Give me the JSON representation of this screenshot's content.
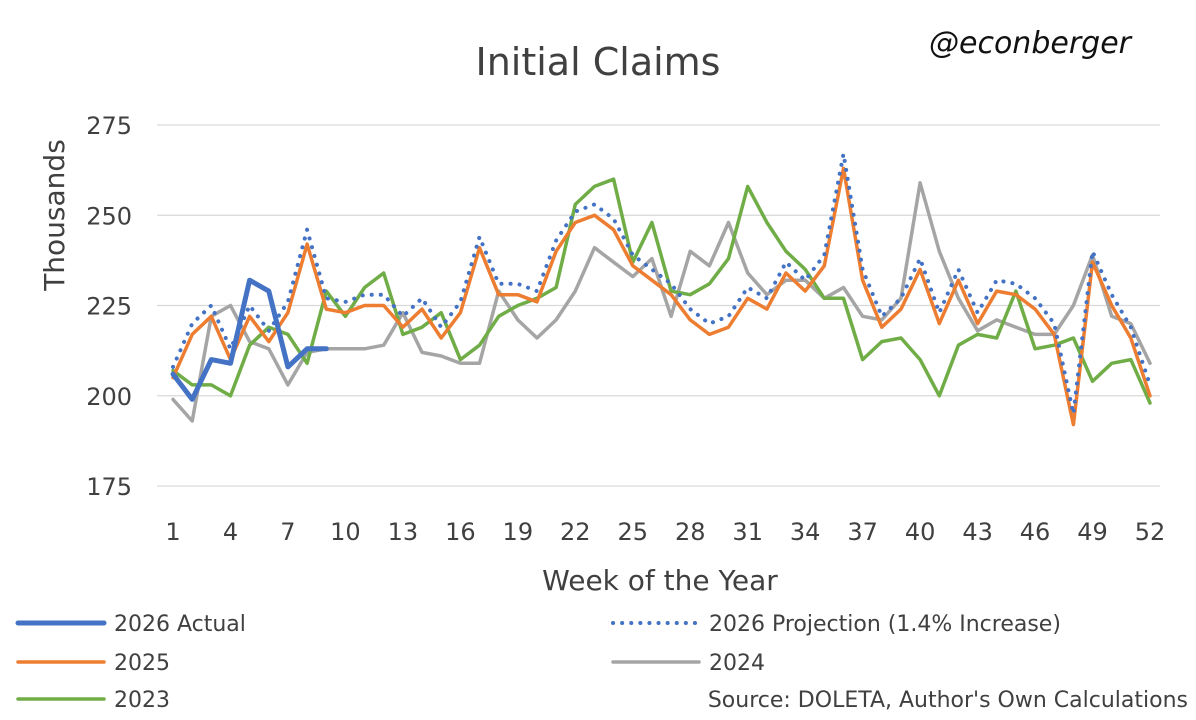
{
  "chart_data": {
    "type": "line",
    "title": "Initial Claims",
    "handle": "@econberger",
    "xlabel": "Week of the Year",
    "ylabel": "Thousands",
    "ylim": [
      175,
      275
    ],
    "yticks": [
      175,
      200,
      225,
      250,
      275
    ],
    "xlim": [
      1,
      52
    ],
    "xticks": [
      1,
      4,
      7,
      10,
      13,
      16,
      19,
      22,
      25,
      28,
      31,
      34,
      37,
      40,
      43,
      46,
      49,
      52
    ],
    "grid": true,
    "legend_position": "bottom",
    "source": "Source: DOLETA, Author's Own Calculations",
    "series": [
      {
        "name": "2024",
        "color": "#a5a5a5",
        "style": "solid",
        "values": [
          199,
          193,
          222,
          225,
          215,
          213,
          203,
          212,
          213,
          213,
          213,
          214,
          223,
          212,
          211,
          209,
          209,
          229,
          221,
          216,
          221,
          229,
          241,
          237,
          233,
          238,
          222,
          240,
          236,
          248,
          234,
          228,
          232,
          232,
          227,
          230,
          222,
          221,
          227,
          259,
          240,
          227,
          218,
          221,
          219,
          217,
          217,
          225,
          239,
          222,
          220,
          209
        ]
      },
      {
        "name": "2023",
        "color": "#70ad47",
        "style": "solid",
        "values": [
          207,
          203,
          203,
          200,
          214,
          219,
          217,
          209,
          229,
          222,
          230,
          234,
          217,
          219,
          223,
          210,
          214,
          222,
          225,
          227,
          230,
          253,
          258,
          260,
          237,
          248,
          229,
          228,
          231,
          238,
          258,
          248,
          240,
          235,
          227,
          227,
          210,
          215,
          216,
          210,
          200,
          214,
          217,
          216,
          229,
          213,
          214,
          216,
          204,
          209,
          210,
          198
        ]
      },
      {
        "name": "2025",
        "color": "#ed7d31",
        "style": "solid",
        "values": [
          205,
          217,
          222,
          210,
          222,
          215,
          223,
          242,
          224,
          223,
          225,
          225,
          219,
          224,
          216,
          223,
          241,
          228,
          228,
          226,
          240,
          248,
          250,
          246,
          236,
          232,
          228,
          221,
          217,
          219,
          227,
          224,
          234,
          229,
          236,
          263,
          232,
          219,
          224,
          235,
          220,
          232,
          220,
          229,
          228,
          224,
          217,
          192,
          237,
          225,
          216,
          200
        ]
      },
      {
        "name": "2026 Projection (1.4% Increase)",
        "color": "#4472c4",
        "style": "dotted",
        "values": [
          208,
          220,
          225,
          213,
          225,
          218,
          226,
          246,
          227,
          226,
          228,
          228,
          222,
          227,
          219,
          226,
          244,
          231,
          231,
          229,
          243,
          251,
          253,
          249,
          239,
          235,
          231,
          224,
          220,
          222,
          230,
          227,
          237,
          232,
          239,
          267,
          235,
          222,
          227,
          238,
          223,
          235,
          223,
          232,
          231,
          227,
          220,
          195,
          240,
          228,
          219,
          203
        ]
      },
      {
        "name": "2026 Actual",
        "color": "#4472c4",
        "style": "solid-thick",
        "values": [
          206,
          199,
          210,
          209,
          232,
          229,
          208,
          213,
          213
        ]
      }
    ],
    "legend_order": [
      "2026 Actual",
      "2026 Projection (1.4% Increase)",
      "2025",
      "2024",
      "2023"
    ]
  }
}
